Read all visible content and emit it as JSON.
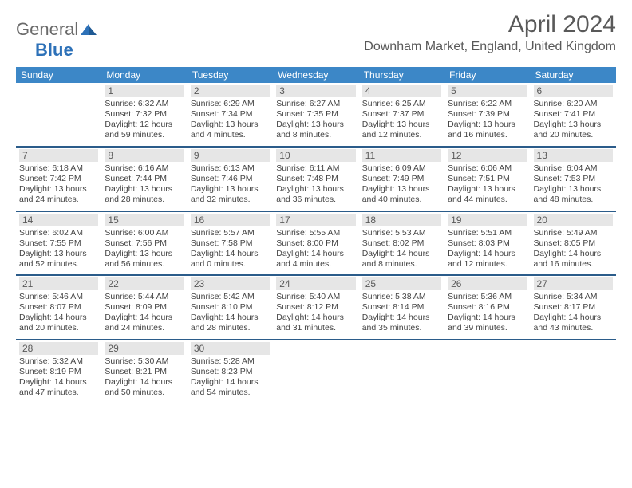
{
  "brand": {
    "text1": "General",
    "text2": "Blue"
  },
  "title": "April 2024",
  "location": "Downham Market, England, United Kingdom",
  "weekdays": [
    "Sunday",
    "Monday",
    "Tuesday",
    "Wednesday",
    "Thursday",
    "Friday",
    "Saturday"
  ],
  "colors": {
    "header_bg": "#3c87c7",
    "border": "#2b5c8a",
    "daynum_bg": "#e6e6e6",
    "text": "#595959"
  },
  "days": {
    "d1": {
      "n": "1",
      "sr": "Sunrise: 6:32 AM",
      "ss": "Sunset: 7:32 PM",
      "dl1": "Daylight: 12 hours",
      "dl2": "and 59 minutes."
    },
    "d2": {
      "n": "2",
      "sr": "Sunrise: 6:29 AM",
      "ss": "Sunset: 7:34 PM",
      "dl1": "Daylight: 13 hours",
      "dl2": "and 4 minutes."
    },
    "d3": {
      "n": "3",
      "sr": "Sunrise: 6:27 AM",
      "ss": "Sunset: 7:35 PM",
      "dl1": "Daylight: 13 hours",
      "dl2": "and 8 minutes."
    },
    "d4": {
      "n": "4",
      "sr": "Sunrise: 6:25 AM",
      "ss": "Sunset: 7:37 PM",
      "dl1": "Daylight: 13 hours",
      "dl2": "and 12 minutes."
    },
    "d5": {
      "n": "5",
      "sr": "Sunrise: 6:22 AM",
      "ss": "Sunset: 7:39 PM",
      "dl1": "Daylight: 13 hours",
      "dl2": "and 16 minutes."
    },
    "d6": {
      "n": "6",
      "sr": "Sunrise: 6:20 AM",
      "ss": "Sunset: 7:41 PM",
      "dl1": "Daylight: 13 hours",
      "dl2": "and 20 minutes."
    },
    "d7": {
      "n": "7",
      "sr": "Sunrise: 6:18 AM",
      "ss": "Sunset: 7:42 PM",
      "dl1": "Daylight: 13 hours",
      "dl2": "and 24 minutes."
    },
    "d8": {
      "n": "8",
      "sr": "Sunrise: 6:16 AM",
      "ss": "Sunset: 7:44 PM",
      "dl1": "Daylight: 13 hours",
      "dl2": "and 28 minutes."
    },
    "d9": {
      "n": "9",
      "sr": "Sunrise: 6:13 AM",
      "ss": "Sunset: 7:46 PM",
      "dl1": "Daylight: 13 hours",
      "dl2": "and 32 minutes."
    },
    "d10": {
      "n": "10",
      "sr": "Sunrise: 6:11 AM",
      "ss": "Sunset: 7:48 PM",
      "dl1": "Daylight: 13 hours",
      "dl2": "and 36 minutes."
    },
    "d11": {
      "n": "11",
      "sr": "Sunrise: 6:09 AM",
      "ss": "Sunset: 7:49 PM",
      "dl1": "Daylight: 13 hours",
      "dl2": "and 40 minutes."
    },
    "d12": {
      "n": "12",
      "sr": "Sunrise: 6:06 AM",
      "ss": "Sunset: 7:51 PM",
      "dl1": "Daylight: 13 hours",
      "dl2": "and 44 minutes."
    },
    "d13": {
      "n": "13",
      "sr": "Sunrise: 6:04 AM",
      "ss": "Sunset: 7:53 PM",
      "dl1": "Daylight: 13 hours",
      "dl2": "and 48 minutes."
    },
    "d14": {
      "n": "14",
      "sr": "Sunrise: 6:02 AM",
      "ss": "Sunset: 7:55 PM",
      "dl1": "Daylight: 13 hours",
      "dl2": "and 52 minutes."
    },
    "d15": {
      "n": "15",
      "sr": "Sunrise: 6:00 AM",
      "ss": "Sunset: 7:56 PM",
      "dl1": "Daylight: 13 hours",
      "dl2": "and 56 minutes."
    },
    "d16": {
      "n": "16",
      "sr": "Sunrise: 5:57 AM",
      "ss": "Sunset: 7:58 PM",
      "dl1": "Daylight: 14 hours",
      "dl2": "and 0 minutes."
    },
    "d17": {
      "n": "17",
      "sr": "Sunrise: 5:55 AM",
      "ss": "Sunset: 8:00 PM",
      "dl1": "Daylight: 14 hours",
      "dl2": "and 4 minutes."
    },
    "d18": {
      "n": "18",
      "sr": "Sunrise: 5:53 AM",
      "ss": "Sunset: 8:02 PM",
      "dl1": "Daylight: 14 hours",
      "dl2": "and 8 minutes."
    },
    "d19": {
      "n": "19",
      "sr": "Sunrise: 5:51 AM",
      "ss": "Sunset: 8:03 PM",
      "dl1": "Daylight: 14 hours",
      "dl2": "and 12 minutes."
    },
    "d20": {
      "n": "20",
      "sr": "Sunrise: 5:49 AM",
      "ss": "Sunset: 8:05 PM",
      "dl1": "Daylight: 14 hours",
      "dl2": "and 16 minutes."
    },
    "d21": {
      "n": "21",
      "sr": "Sunrise: 5:46 AM",
      "ss": "Sunset: 8:07 PM",
      "dl1": "Daylight: 14 hours",
      "dl2": "and 20 minutes."
    },
    "d22": {
      "n": "22",
      "sr": "Sunrise: 5:44 AM",
      "ss": "Sunset: 8:09 PM",
      "dl1": "Daylight: 14 hours",
      "dl2": "and 24 minutes."
    },
    "d23": {
      "n": "23",
      "sr": "Sunrise: 5:42 AM",
      "ss": "Sunset: 8:10 PM",
      "dl1": "Daylight: 14 hours",
      "dl2": "and 28 minutes."
    },
    "d24": {
      "n": "24",
      "sr": "Sunrise: 5:40 AM",
      "ss": "Sunset: 8:12 PM",
      "dl1": "Daylight: 14 hours",
      "dl2": "and 31 minutes."
    },
    "d25": {
      "n": "25",
      "sr": "Sunrise: 5:38 AM",
      "ss": "Sunset: 8:14 PM",
      "dl1": "Daylight: 14 hours",
      "dl2": "and 35 minutes."
    },
    "d26": {
      "n": "26",
      "sr": "Sunrise: 5:36 AM",
      "ss": "Sunset: 8:16 PM",
      "dl1": "Daylight: 14 hours",
      "dl2": "and 39 minutes."
    },
    "d27": {
      "n": "27",
      "sr": "Sunrise: 5:34 AM",
      "ss": "Sunset: 8:17 PM",
      "dl1": "Daylight: 14 hours",
      "dl2": "and 43 minutes."
    },
    "d28": {
      "n": "28",
      "sr": "Sunrise: 5:32 AM",
      "ss": "Sunset: 8:19 PM",
      "dl1": "Daylight: 14 hours",
      "dl2": "and 47 minutes."
    },
    "d29": {
      "n": "29",
      "sr": "Sunrise: 5:30 AM",
      "ss": "Sunset: 8:21 PM",
      "dl1": "Daylight: 14 hours",
      "dl2": "and 50 minutes."
    },
    "d30": {
      "n": "30",
      "sr": "Sunrise: 5:28 AM",
      "ss": "Sunset: 8:23 PM",
      "dl1": "Daylight: 14 hours",
      "dl2": "and 54 minutes."
    }
  }
}
